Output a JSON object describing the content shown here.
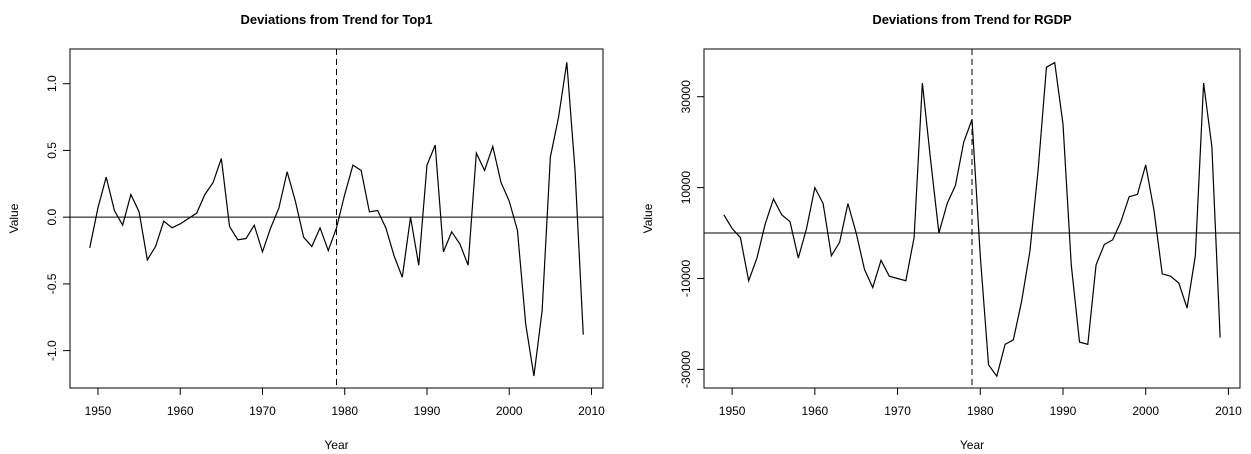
{
  "chart_data": [
    {
      "type": "line",
      "title": "Deviations from Trend for Top1",
      "xlabel": "Year",
      "ylabel": "Value",
      "x": [
        1949,
        1950,
        1951,
        1952,
        1953,
        1954,
        1955,
        1956,
        1957,
        1958,
        1959,
        1960,
        1961,
        1962,
        1963,
        1964,
        1965,
        1966,
        1967,
        1968,
        1969,
        1970,
        1971,
        1972,
        1973,
        1974,
        1975,
        1976,
        1977,
        1978,
        1979,
        1980,
        1981,
        1982,
        1983,
        1984,
        1985,
        1986,
        1987,
        1988,
        1989,
        1990,
        1991,
        1992,
        1993,
        1994,
        1995,
        1996,
        1997,
        1998,
        1999,
        2000,
        2001,
        2002,
        2003,
        2004,
        2005,
        2006,
        2007,
        2008,
        2009
      ],
      "series": [
        {
          "color": "#000000",
          "values": [
            -0.23,
            0.07,
            0.3,
            0.05,
            -0.06,
            0.17,
            0.04,
            -0.32,
            -0.22,
            -0.03,
            -0.08,
            -0.05,
            -0.01,
            0.03,
            0.17,
            0.26,
            0.44,
            -0.07,
            -0.17,
            -0.16,
            -0.06,
            -0.26,
            -0.08,
            0.07,
            0.34,
            0.12,
            -0.15,
            -0.22,
            -0.08,
            -0.25,
            -0.08,
            0.17,
            0.39,
            0.35,
            0.04,
            0.05,
            -0.08,
            -0.29,
            -0.45,
            0.0,
            -0.36,
            0.39,
            0.54,
            -0.26,
            -0.11,
            -0.2,
            -0.36,
            0.48,
            0.35,
            0.53,
            0.26,
            0.12,
            -0.1,
            -0.8,
            -1.19,
            -0.7,
            0.45,
            0.75,
            1.16,
            0.35,
            -0.88
          ]
        }
      ],
      "xlim": [
        1946.6,
        2011.4
      ],
      "xticks": [
        1950,
        1960,
        1970,
        1980,
        1990,
        2000,
        2010
      ],
      "ylim": [
        -1.28,
        1.26
      ],
      "yticks": [
        {
          "value": -1,
          "label": "-1.0"
        },
        -0.5,
        {
          "value": 0,
          "label": "0.0"
        },
        0.5,
        {
          "value": 1,
          "label": "1.0"
        }
      ],
      "hline": 0,
      "vline": 1979
    },
    {
      "type": "line",
      "title": "Deviations from Trend for RGDP",
      "xlabel": "Year",
      "ylabel": "Value",
      "x": [
        1949,
        1950,
        1951,
        1952,
        1953,
        1954,
        1955,
        1956,
        1957,
        1958,
        1959,
        1960,
        1961,
        1962,
        1963,
        1964,
        1965,
        1966,
        1967,
        1968,
        1969,
        1970,
        1971,
        1972,
        1973,
        1974,
        1975,
        1976,
        1977,
        1978,
        1979,
        1980,
        1981,
        1982,
        1983,
        1984,
        1985,
        1986,
        1987,
        1988,
        1989,
        1990,
        1991,
        1992,
        1993,
        1994,
        1995,
        1996,
        1997,
        1998,
        1999,
        2000,
        2001,
        2002,
        2003,
        2004,
        2005,
        2006,
        2007,
        2008,
        2009
      ],
      "series": [
        {
          "color": "#000000",
          "values": [
            4000,
            1000,
            -1000,
            -10500,
            -5500,
            2000,
            7500,
            4000,
            2500,
            -5500,
            1000,
            10000,
            6500,
            -5000,
            -2000,
            6500,
            0,
            -8000,
            -12000,
            -6000,
            -9500,
            -10000,
            -10500,
            -1000,
            33000,
            16000,
            0,
            6500,
            10500,
            20000,
            25000,
            -5000,
            -29000,
            -31500,
            -24500,
            -23500,
            -15000,
            -4000,
            14000,
            36500,
            37500,
            24000,
            -7000,
            -24000,
            -24500,
            -7000,
            -2500,
            -1500,
            2500,
            8000,
            8500,
            15000,
            5000,
            -9000,
            -9500,
            -11000,
            -16500,
            -5000,
            33000,
            19000,
            -23000
          ]
        }
      ],
      "xlim": [
        1946.6,
        2011.4
      ],
      "xticks": [
        1950,
        1960,
        1970,
        1980,
        1990,
        2000,
        2010
      ],
      "ylim": [
        -34100,
        40500
      ],
      "yticks": [
        -30000,
        -10000,
        10000,
        30000
      ],
      "hline": 0,
      "vline": 1979
    }
  ]
}
